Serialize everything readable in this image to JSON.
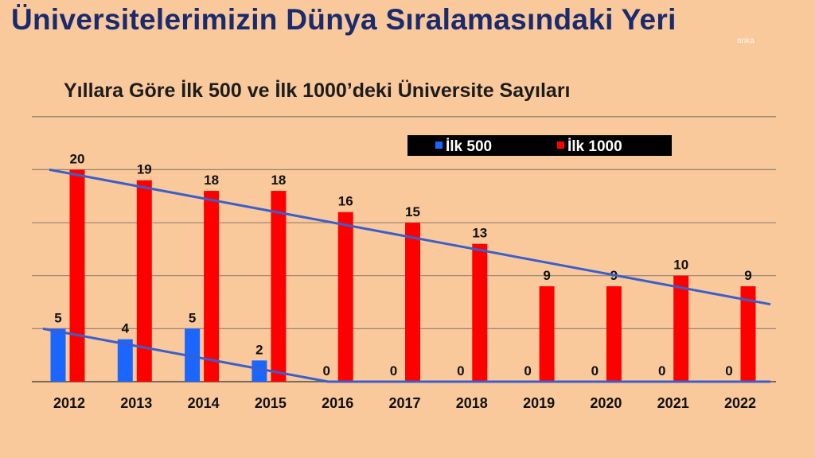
{
  "page": {
    "title": "Üniversitelerimizin Dünya Sıralamasındaki Yeri",
    "watermark": "anka"
  },
  "colors": {
    "background": "#f9c89b",
    "ilk500": "#1a66ff",
    "ilk1000": "#ff0000",
    "trend": "#3a5fcd",
    "legend_bg": "#000000",
    "grid": "#555555"
  },
  "chart_data": {
    "type": "bar",
    "title": "Yıllara Göre İlk 500 ve İlk 1000’deki Üniversite Sayıları",
    "categories": [
      "2012",
      "2013",
      "2014",
      "2015",
      "2016",
      "2017",
      "2018",
      "2019",
      "2020",
      "2021",
      "2022"
    ],
    "series": [
      {
        "name": "İlk 500",
        "values": [
          5,
          4,
          5,
          2,
          0,
          0,
          0,
          0,
          0,
          0,
          0
        ]
      },
      {
        "name": "İlk 1000",
        "values": [
          20,
          19,
          18,
          18,
          16,
          15,
          13,
          9,
          9,
          10,
          9
        ]
      }
    ],
    "ylim": [
      0,
      25
    ],
    "grid": true,
    "legend": "top-right",
    "trend_lines": [
      {
        "series": "İlk 1000",
        "start": 20,
        "end": 7.3
      },
      {
        "series": "İlk 500",
        "start": 5,
        "end": 0,
        "end_category": "2016"
      }
    ]
  }
}
